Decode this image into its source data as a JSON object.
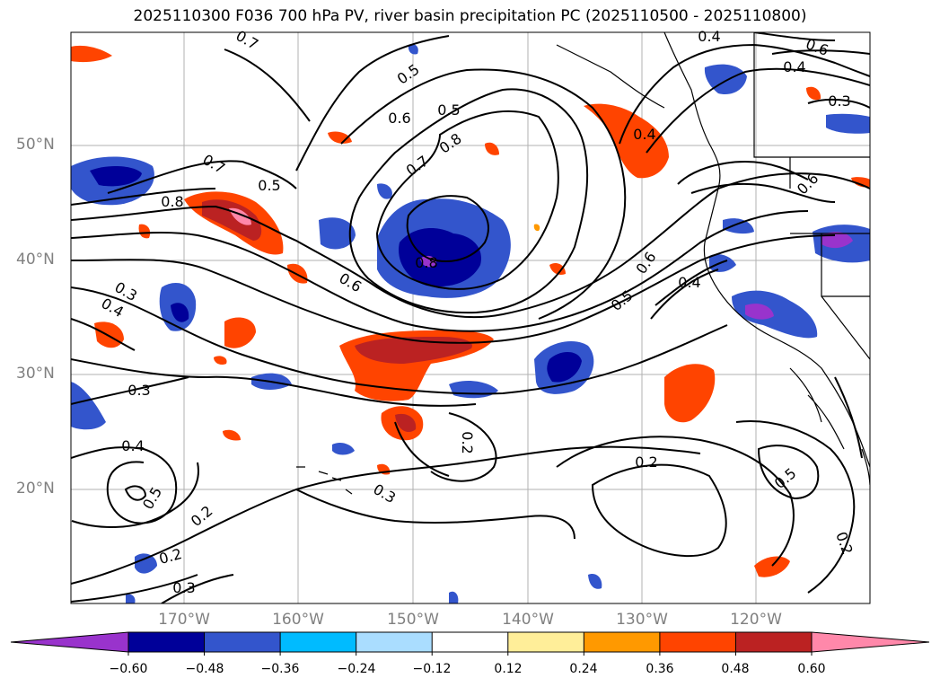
{
  "title": "2025110300 F036 700 hPa PV, river basin precipitation PC (2025110500 - 2025110800)",
  "lat_labels": [
    "50°N",
    "40°N",
    "30°N",
    "20°N"
  ],
  "lon_labels": [
    "170°W",
    "160°W",
    "150°W",
    "140°W",
    "130°W",
    "120°W"
  ],
  "colorbar": {
    "ticks": [
      "−0.60",
      "−0.48",
      "−0.36",
      "−0.24",
      "−0.12",
      "0.12",
      "0.24",
      "0.36",
      "0.48",
      "0.60"
    ],
    "colors": [
      "#9933cc",
      "#000099",
      "#3355cc",
      "#00bbff",
      "#aaddff",
      "#ffffff",
      "#ffee99",
      "#ff9900",
      "#ff4400",
      "#bb2222",
      "#ff88aa"
    ]
  },
  "contour_labels": [
    "0.4",
    "0.6",
    "0.7",
    "0.5",
    "0.4",
    "0.6",
    "0.4",
    "0.5",
    "0.8",
    "0.7",
    "0.5",
    "0.7",
    "0.8",
    "0.6",
    "0.3",
    "0.4",
    "0.3",
    "0.8",
    "0.6",
    "0.5",
    "0.4",
    "0.6",
    "0.3",
    "0.4",
    "0.5",
    "0.2",
    "0.2",
    "0.3",
    "0.3",
    "0.2",
    "0.5",
    "0.2",
    "0.2"
  ]
}
